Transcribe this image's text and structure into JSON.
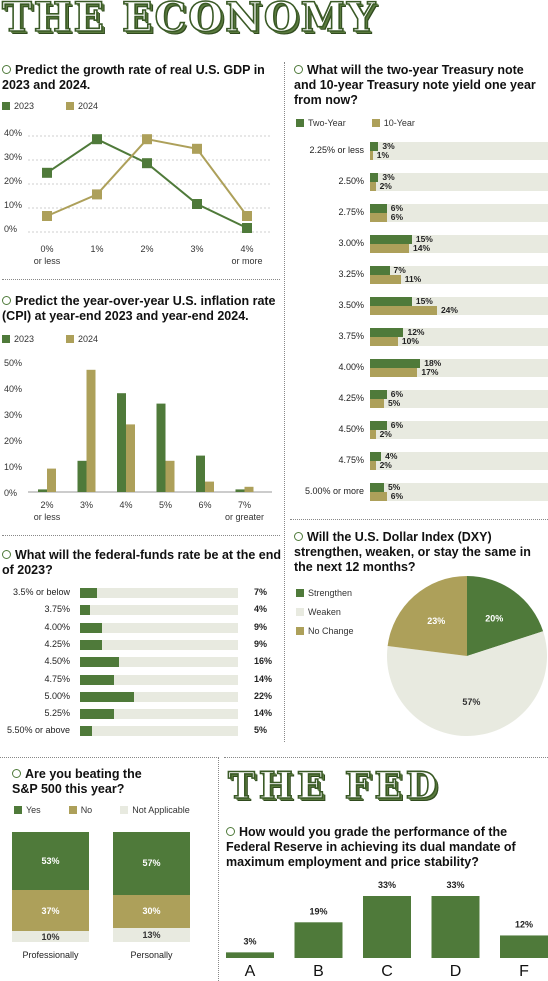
{
  "colors": {
    "green": "#4f7a3a",
    "gold": "#ada05a",
    "light": "#e8eae0",
    "line": "#888888"
  },
  "titles": {
    "economy": "THE ECONOMY",
    "fed": "THE FED"
  },
  "gdp": {
    "question": "Predict the growth rate of real U.S. GDP in 2023 and 2024.",
    "chart_data": {
      "type": "line",
      "categories": [
        "0% or less",
        "1%",
        "2%",
        "3%",
        "4% or more"
      ],
      "category_lines": [
        [
          "0%",
          "or less"
        ],
        [
          "1%"
        ],
        [
          "2%"
        ],
        [
          "3%"
        ],
        [
          "4%",
          "or more"
        ]
      ],
      "series": [
        {
          "name": "2023",
          "values": [
            23,
            37,
            27,
            10,
            0
          ]
        },
        {
          "name": "2024",
          "values": [
            5,
            14,
            37,
            33,
            5
          ]
        }
      ],
      "yticks": [
        "40%",
        "30%",
        "20%",
        "10%",
        "0%"
      ],
      "ylim": [
        0,
        40
      ]
    }
  },
  "cpi": {
    "question": "Predict the year-over-year U.S. inflation rate (CPI) at year-end 2023 and year-end 2024.",
    "chart_data": {
      "type": "bar",
      "categories": [
        "2% or less",
        "3%",
        "4%",
        "5%",
        "6%",
        "7% or greater"
      ],
      "category_lines": [
        [
          "2%",
          "or less"
        ],
        [
          "3%"
        ],
        [
          "4%"
        ],
        [
          "5%"
        ],
        [
          "6%"
        ],
        [
          "7%",
          "or greater"
        ]
      ],
      "series": [
        {
          "name": "2023",
          "values": [
            1,
            12,
            38,
            34,
            14,
            1
          ]
        },
        {
          "name": "2024",
          "values": [
            9,
            47,
            26,
            12,
            4,
            2
          ]
        }
      ],
      "yticks": [
        "50%",
        "40%",
        "30%",
        "20%",
        "10%",
        "0%"
      ],
      "ylim": [
        0,
        50
      ]
    }
  },
  "fedfunds": {
    "question": "What will the federal-funds rate be at the end of 2023?",
    "chart_data": {
      "type": "bar",
      "orientation": "horizontal",
      "categories": [
        "3.5% or below",
        "3.75%",
        "4.00%",
        "4.25%",
        "4.50%",
        "4.75%",
        "5.00%",
        "5.25%",
        "5.50% or above"
      ],
      "values": [
        7,
        4,
        9,
        9,
        16,
        14,
        22,
        14,
        5
      ],
      "value_labels": [
        "7%",
        "4%",
        "9%",
        "9%",
        "16%",
        "14%",
        "22%",
        "14%",
        "5%"
      ]
    }
  },
  "sp500": {
    "question": "Are you beating the S&P 500 this year?",
    "chart_data": {
      "type": "bar",
      "stacked": true,
      "categories": [
        "Professionally",
        "Personally"
      ],
      "series": [
        {
          "name": "Yes",
          "values": [
            53,
            57
          ],
          "labels": [
            "53%",
            "57%"
          ]
        },
        {
          "name": "No",
          "values": [
            37,
            30
          ],
          "labels": [
            "37%",
            "30%"
          ]
        },
        {
          "name": "Not Applicable",
          "values": [
            10,
            13
          ],
          "labels": [
            "10%",
            "13%"
          ]
        }
      ]
    }
  },
  "treasury": {
    "question": "What will the two-year Treasury note and 10-year Treasury note yield one year from now?",
    "chart_data": {
      "type": "bar",
      "orientation": "horizontal",
      "categories": [
        "2.25% or less",
        "2.50%",
        "2.75%",
        "3.00%",
        "3.25%",
        "3.50%",
        "3.75%",
        "4.00%",
        "4.25%",
        "4.50%",
        "4.75%",
        "5.00% or more"
      ],
      "series": [
        {
          "name": "Two-Year",
          "values": [
            3,
            3,
            6,
            15,
            7,
            15,
            12,
            18,
            6,
            6,
            4,
            5
          ],
          "labels": [
            "3%",
            "3%",
            "6%",
            "15%",
            "7%",
            "15%",
            "12%",
            "18%",
            "6%",
            "6%",
            "4%",
            "5%"
          ]
        },
        {
          "name": "10-Year",
          "values": [
            1,
            2,
            6,
            14,
            11,
            24,
            10,
            17,
            5,
            2,
            2,
            6
          ],
          "labels": [
            "1%",
            "2%",
            "6%",
            "14%",
            "11%",
            "24%",
            "10%",
            "17%",
            "5%",
            "2%",
            "2%",
            "6%"
          ]
        }
      ]
    }
  },
  "dxy": {
    "question": "Will the U.S. Dollar Index (DXY) strengthen, weaken, or stay the same in the next 12 months?",
    "chart_data": {
      "type": "pie",
      "categories": [
        "Strengthen",
        "Weaken",
        "No Change"
      ],
      "values": [
        20,
        57,
        23
      ],
      "labels": [
        "20%",
        "57%",
        "23%"
      ]
    }
  },
  "fedgrade": {
    "question": "How would you grade the performance of the Federal Reserve in achieving its dual mandate of maximum employment and price stability?",
    "chart_data": {
      "type": "bar",
      "categories": [
        "A",
        "B",
        "C",
        "D",
        "F"
      ],
      "values": [
        3,
        19,
        33,
        33,
        12
      ],
      "labels": [
        "3%",
        "19%",
        "33%",
        "33%",
        "12%"
      ]
    }
  }
}
